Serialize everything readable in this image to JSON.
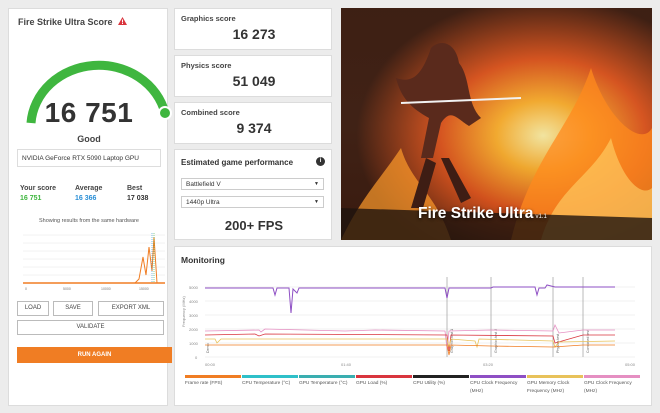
{
  "left": {
    "title": "Fire Strike Ultra Score",
    "score": "16 751",
    "rating": "Good",
    "gpu": "NVIDIA GeForce RTX 5090 Laptop GPU",
    "your_score_label": "Your score",
    "your_score": "16 751",
    "average_label": "Average",
    "average": "16 366",
    "best_label": "Best",
    "best": "17 038",
    "note": "Showing results from the same hardware",
    "mini_ticks": [
      "0",
      "5000",
      "10000",
      "15000"
    ],
    "buttons": {
      "load": "LOAD",
      "save": "SAVE",
      "export": "EXPORT XML",
      "validate": "VALIDATE",
      "run": "RUN AGAIN"
    }
  },
  "scores": [
    {
      "label": "Graphics score",
      "value": "16 273"
    },
    {
      "label": "Physics score",
      "value": "51 049"
    },
    {
      "label": "Combined score",
      "value": "9 374"
    }
  ],
  "game_perf": {
    "title": "Estimated game performance",
    "info_icon": "i",
    "game": "Battlefield V",
    "resolution": "1440p Ultra",
    "fps": "200+ FPS"
  },
  "hero": {
    "title": "Fire Strike Ultra",
    "version": "v1.1"
  },
  "monitoring": {
    "title": "Monitoring",
    "y_label": "Frequency (MHz)",
    "y_ticks": [
      "5000",
      "4000",
      "3000",
      "2000",
      "1000",
      "0"
    ],
    "x_ticks": [
      "00:00",
      "01:40",
      "03:20",
      "05:00"
    ],
    "markers": [
      "Demo",
      "Graphics test 1",
      "Graphics test 2",
      "Physics test",
      "Combined test"
    ],
    "legend": [
      {
        "label": "Frame rate (FPS)",
        "color": "#f07d23"
      },
      {
        "label": "CPU Temperature (°C)",
        "color": "#2fc0c9"
      },
      {
        "label": "GPU Temperature (°C)",
        "color": "#3aaeb0"
      },
      {
        "label": "GPU Load (%)",
        "color": "#d9353e"
      },
      {
        "label": "CPU Utility (%)",
        "color": "#222222"
      },
      {
        "label": "CPU Clock Frequency (MHz)",
        "color": "#8e4fc4"
      },
      {
        "label": "GPU Memory Clock Frequency (MHz)",
        "color": "#e8c25a"
      },
      {
        "label": "GPU Clock Frequency (MHz)",
        "color": "#e58fc2"
      }
    ]
  },
  "colors": {
    "accent": "#f07d23",
    "gauge": "#3fb63f",
    "your_score": "#3fb63f",
    "average": "#2a8fd6"
  }
}
